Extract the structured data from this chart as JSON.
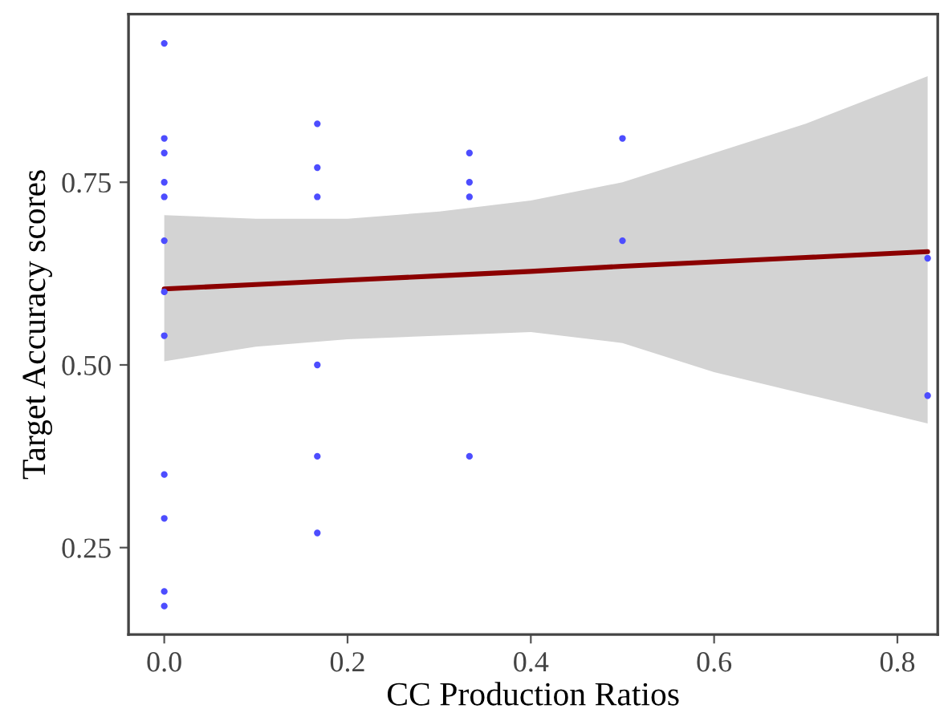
{
  "chart_data": {
    "type": "scatter",
    "xlabel": "CC Production Ratios",
    "ylabel": "Target Accuracy scores",
    "xlim": [
      -0.039,
      0.844
    ],
    "ylim": [
      0.131,
      0.98
    ],
    "xticks": [
      {
        "value": 0,
        "label": "0.0"
      },
      {
        "value": 0.2,
        "label": "0.2"
      },
      {
        "value": 0.4,
        "label": "0.4"
      },
      {
        "value": 0.6,
        "label": "0.6"
      },
      {
        "value": 0.8,
        "label": "0.8"
      }
    ],
    "yticks": [
      {
        "value": 0.25,
        "label": "0.25"
      },
      {
        "value": 0.5,
        "label": "0.50"
      },
      {
        "value": 0.75,
        "label": "0.75"
      }
    ],
    "grid": false,
    "series": [
      {
        "type": "scatter",
        "marker": "circle",
        "color": "#4d4dff",
        "x": [
          0,
          0,
          0,
          0,
          0,
          0,
          0,
          0,
          0,
          0,
          0,
          0,
          0.167,
          0.167,
          0.167,
          0.167,
          0.167,
          0.167,
          0.333,
          0.333,
          0.333,
          0.333,
          0.5,
          0.5,
          0.833,
          0.833
        ],
        "values": [
          0.94,
          0.81,
          0.79,
          0.75,
          0.73,
          0.67,
          0.6,
          0.54,
          0.35,
          0.29,
          0.19,
          0.17,
          0.83,
          0.77,
          0.73,
          0.5,
          0.375,
          0.27,
          0.79,
          0.75,
          0.73,
          0.375,
          0.81,
          0.67,
          0.646,
          0.458
        ]
      },
      {
        "type": "line",
        "marker": "none",
        "color": "#8b0000",
        "x": [
          0,
          0.1,
          0.2,
          0.3,
          0.4,
          0.5,
          0.6,
          0.7,
          0.833
        ],
        "values": [
          0.604,
          0.61,
          0.616,
          0.622,
          0.628,
          0.635,
          0.641,
          0.647,
          0.655
        ],
        "lower": [
          0.505,
          0.525,
          0.535,
          0.54,
          0.545,
          0.53,
          0.49,
          0.46,
          0.42
        ],
        "upper": [
          0.705,
          0.7,
          0.7,
          0.71,
          0.725,
          0.75,
          0.79,
          0.83,
          0.895
        ]
      }
    ]
  }
}
